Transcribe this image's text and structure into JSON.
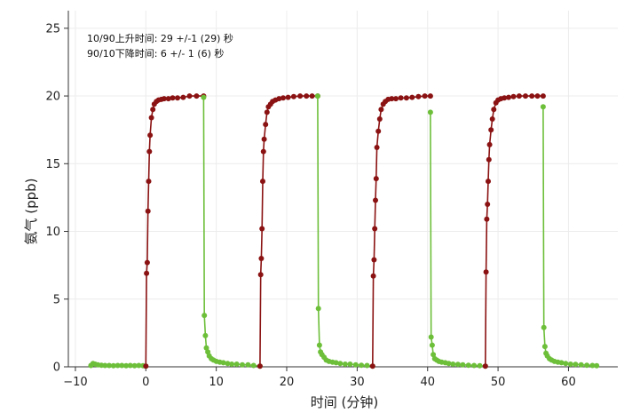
{
  "chart_data": {
    "type": "line",
    "xlabel": "时间 (分钟)",
    "ylabel": "氨气 (ppb)",
    "xlim": [
      -11,
      67
    ],
    "ylim": [
      0,
      26.3
    ],
    "xticks": [
      -10,
      0,
      10,
      20,
      30,
      40,
      50,
      60
    ],
    "yticks": [
      0,
      5,
      10,
      15,
      20,
      25
    ],
    "grid": true,
    "annotations": [
      "10/90上升时间: 29 +/-1 (29) 秒",
      "90/10下降时间: 6 +/- 1 (6) 秒"
    ],
    "colors": {
      "rise": "#8b1212",
      "fall": "#6dbf3a",
      "grid": "#ececec",
      "axis": "#333333"
    },
    "series": [
      {
        "segment": "baseline",
        "color": "fall",
        "x": [
          -7.8,
          -7.5,
          -7.2,
          -6.8,
          -6.3,
          -5.8,
          -5.2,
          -4.6,
          -4.0,
          -3.4,
          -2.8,
          -2.2,
          -1.6,
          -1.0,
          -0.4,
          0.0
        ],
        "y": [
          0.1,
          0.25,
          0.2,
          0.15,
          0.12,
          0.1,
          0.1,
          0.08,
          0.1,
          0.1,
          0.08,
          0.1,
          0.08,
          0.1,
          0.08,
          0.05
        ]
      },
      {
        "segment": "rise",
        "color": "rise",
        "x": [
          0.0,
          0.1,
          0.2,
          0.3,
          0.4,
          0.5,
          0.6,
          0.8,
          1.0,
          1.2,
          1.5,
          1.8,
          2.2,
          2.6,
          3.2,
          3.8,
          4.5,
          5.3,
          6.2,
          7.2,
          8.2
        ],
        "y": [
          0.05,
          6.9,
          7.7,
          11.5,
          13.7,
          15.9,
          17.1,
          18.4,
          19.0,
          19.4,
          19.6,
          19.7,
          19.75,
          19.8,
          19.8,
          19.85,
          19.85,
          19.9,
          20.0,
          20.0,
          20.0
        ]
      },
      {
        "segment": "fall",
        "color": "fall",
        "x": [
          8.2,
          8.3,
          8.45,
          8.6,
          8.8,
          9.0,
          9.3,
          9.6,
          10.0,
          10.5,
          11.0,
          11.6,
          12.2,
          12.9,
          13.7,
          14.5,
          15.3,
          16.2
        ],
        "y": [
          19.9,
          3.8,
          2.3,
          1.4,
          1.1,
          0.8,
          0.6,
          0.5,
          0.4,
          0.35,
          0.3,
          0.25,
          0.2,
          0.2,
          0.15,
          0.15,
          0.1,
          0.05
        ]
      },
      {
        "segment": "rise",
        "color": "rise",
        "x": [
          16.2,
          16.3,
          16.4,
          16.5,
          16.6,
          16.7,
          16.8,
          17.0,
          17.2,
          17.4,
          17.7,
          18.0,
          18.4,
          18.9,
          19.5,
          20.2,
          21.0,
          21.9,
          22.8,
          23.6,
          24.4
        ],
        "y": [
          0.05,
          6.8,
          8.0,
          10.2,
          13.7,
          15.9,
          16.8,
          17.9,
          18.8,
          19.2,
          19.4,
          19.6,
          19.7,
          19.8,
          19.85,
          19.9,
          19.95,
          20.0,
          20.0,
          20.0,
          20.0
        ]
      },
      {
        "segment": "fall",
        "color": "fall",
        "x": [
          24.4,
          24.5,
          24.65,
          24.8,
          25.0,
          25.3,
          25.6,
          26.0,
          26.5,
          27.0,
          27.6,
          28.3,
          29.0,
          29.8,
          30.6,
          31.4,
          32.2
        ],
        "y": [
          20.0,
          4.3,
          1.6,
          1.1,
          0.9,
          0.7,
          0.5,
          0.4,
          0.35,
          0.3,
          0.25,
          0.2,
          0.2,
          0.15,
          0.12,
          0.1,
          0.05
        ]
      },
      {
        "segment": "rise",
        "color": "rise",
        "x": [
          32.2,
          32.3,
          32.4,
          32.5,
          32.6,
          32.7,
          32.8,
          33.0,
          33.2,
          33.4,
          33.7,
          34.0,
          34.4,
          34.9,
          35.5,
          36.2,
          37.0,
          37.8,
          38.7,
          39.6,
          40.4
        ],
        "y": [
          0.05,
          6.7,
          7.9,
          10.2,
          12.3,
          13.9,
          16.2,
          17.4,
          18.3,
          19.0,
          19.4,
          19.6,
          19.75,
          19.8,
          19.8,
          19.85,
          19.85,
          19.9,
          19.95,
          20.0,
          20.0
        ]
      },
      {
        "segment": "fall",
        "color": "fall",
        "x": [
          40.4,
          40.5,
          40.65,
          40.8,
          41.0,
          41.3,
          41.6,
          42.0,
          42.5,
          43.0,
          43.6,
          44.3,
          45.0,
          45.8,
          46.6,
          47.4,
          48.2
        ],
        "y": [
          18.8,
          2.2,
          1.6,
          0.9,
          0.6,
          0.5,
          0.4,
          0.35,
          0.3,
          0.25,
          0.2,
          0.18,
          0.15,
          0.12,
          0.1,
          0.08,
          0.05
        ]
      },
      {
        "segment": "rise",
        "color": "rise",
        "x": [
          48.2,
          48.3,
          48.4,
          48.5,
          48.6,
          48.7,
          48.8,
          49.0,
          49.2,
          49.4,
          49.7,
          50.0,
          50.4,
          50.9,
          51.5,
          52.2,
          53.0,
          53.9,
          54.8,
          55.6,
          56.4
        ],
        "y": [
          0.05,
          7.0,
          10.9,
          12.0,
          13.7,
          15.3,
          16.4,
          17.5,
          18.3,
          19.0,
          19.5,
          19.7,
          19.8,
          19.85,
          19.9,
          19.95,
          20.0,
          20.0,
          20.0,
          20.0,
          20.0
        ]
      },
      {
        "segment": "fall",
        "color": "fall",
        "x": [
          56.4,
          56.5,
          56.65,
          56.8,
          57.0,
          57.3,
          57.6,
          58.0,
          58.5,
          59.0,
          59.6,
          60.3,
          61.0,
          61.8,
          62.6,
          63.4,
          64.0
        ],
        "y": [
          19.2,
          2.9,
          1.5,
          1.0,
          0.8,
          0.6,
          0.5,
          0.4,
          0.35,
          0.3,
          0.25,
          0.2,
          0.18,
          0.15,
          0.12,
          0.1,
          0.08
        ]
      }
    ]
  }
}
